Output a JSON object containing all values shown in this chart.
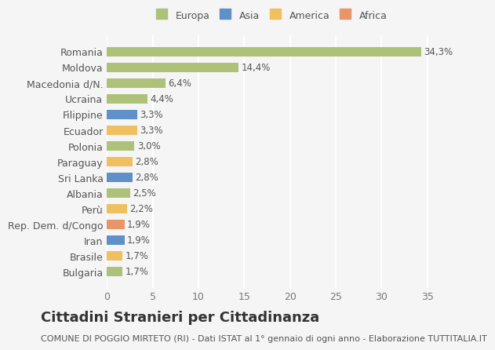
{
  "categories": [
    "Bulgaria",
    "Brasile",
    "Iran",
    "Rep. Dem. d/Congo",
    "Perù",
    "Albania",
    "Sri Lanka",
    "Paraguay",
    "Polonia",
    "Ecuador",
    "Filippine",
    "Ucraina",
    "Macedonia d/N.",
    "Moldova",
    "Romania"
  ],
  "values": [
    1.7,
    1.7,
    1.9,
    1.9,
    2.2,
    2.5,
    2.8,
    2.8,
    3.0,
    3.3,
    3.3,
    4.4,
    6.4,
    14.4,
    34.3
  ],
  "labels": [
    "1,7%",
    "1,7%",
    "1,9%",
    "1,9%",
    "2,2%",
    "2,5%",
    "2,8%",
    "2,8%",
    "3,0%",
    "3,3%",
    "3,3%",
    "4,4%",
    "6,4%",
    "14,4%",
    "34,3%"
  ],
  "colors": [
    "#adc178",
    "#f0c060",
    "#6090c8",
    "#e8956a",
    "#f0c060",
    "#adc178",
    "#6090c8",
    "#f0c060",
    "#adc178",
    "#f0c060",
    "#6090c8",
    "#adc178",
    "#adc178",
    "#adc178",
    "#adc178"
  ],
  "legend_labels": [
    "Europa",
    "Asia",
    "America",
    "Africa"
  ],
  "legend_colors": [
    "#adc178",
    "#6090c8",
    "#f0c060",
    "#e8956a"
  ],
  "title": "Cittadini Stranieri per Cittadinanza",
  "subtitle": "COMUNE DI POGGIO MIRTETO (RI) - Dati ISTAT al 1° gennaio di ogni anno - Elaborazione TUTTITALIA.IT",
  "xlim": [
    0,
    36
  ],
  "xticks": [
    0,
    5,
    10,
    15,
    20,
    25,
    30,
    35
  ],
  "background_color": "#f5f5f5",
  "grid_color": "#ffffff",
  "bar_height": 0.6,
  "title_fontsize": 13,
  "subtitle_fontsize": 8,
  "tick_fontsize": 9,
  "label_fontsize": 8.5
}
